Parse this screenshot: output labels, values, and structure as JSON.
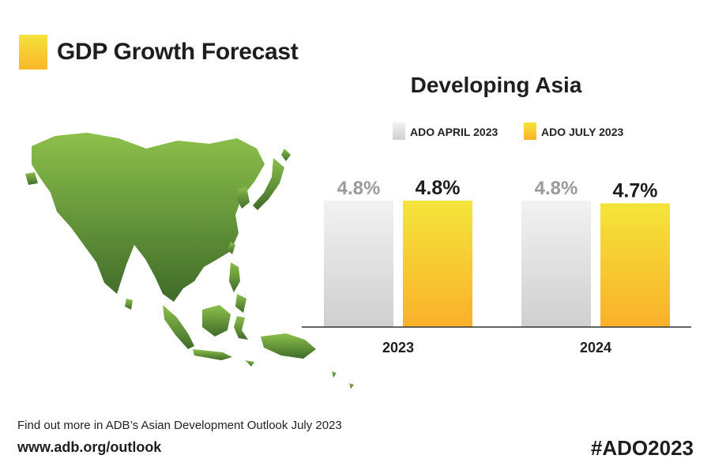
{
  "header": {
    "title": "GDP Growth Forecast"
  },
  "colors": {
    "april_top": "#f2f2f2",
    "april_bottom": "#cfcfcf",
    "july_top": "#f4e53a",
    "july_bottom": "#f9b02a",
    "map_top": "#8cc04b",
    "map_bottom": "#3f6b2a"
  },
  "map": {
    "icon": "asia-map-icon"
  },
  "chart_data": {
    "type": "bar",
    "title": "Developing Asia",
    "categories": [
      "2023",
      "2024"
    ],
    "series": [
      {
        "name": "ADO APRIL 2023",
        "values": [
          4.8,
          4.8
        ],
        "labels": [
          "4.8%",
          "4.8%"
        ]
      },
      {
        "name": "ADO JULY 2023",
        "values": [
          4.8,
          4.7
        ],
        "labels": [
          "4.8%",
          "4.7%"
        ]
      }
    ],
    "ylim": [
      0,
      4.8
    ],
    "grid": false,
    "legend": "top"
  },
  "footer": {
    "line1": "Find out more in ADB’s Asian Development Outlook July 2023",
    "url": "www.adb.org/outlook",
    "hashtag": "#ADO2023"
  }
}
